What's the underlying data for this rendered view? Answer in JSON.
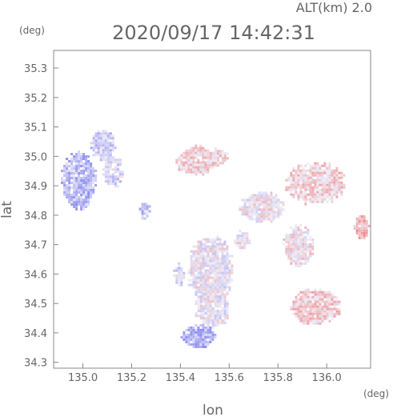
{
  "chart_data": {
    "type": "heatmap",
    "title": "2020/09/17 14:42:31",
    "subtitle": "ALT(km) 2.0",
    "xlabel": "lon",
    "ylabel": "lat",
    "x_unit": "(deg)",
    "y_unit": "(deg)",
    "xlim": [
      134.88,
      136.18
    ],
    "ylim": [
      34.28,
      35.36
    ],
    "xticks": [
      "135.0",
      "135.2",
      "135.4",
      "135.6",
      "135.8",
      "136.0"
    ],
    "yticks": [
      "34.3",
      "34.4",
      "34.5",
      "34.6",
      "34.7",
      "34.8",
      "34.9",
      "35.0",
      "35.1",
      "35.2",
      "35.3"
    ],
    "grid": false,
    "colors": {
      "positive": "#f08a8a",
      "negative": "#8c8cf0",
      "neutral": "#eeeef8"
    },
    "echo_regions": [
      {
        "lon": 134.98,
        "lat": 34.92,
        "rlon": 0.07,
        "rlat": 0.1,
        "tone": -0.5
      },
      {
        "lon": 135.08,
        "lat": 35.04,
        "rlon": 0.05,
        "rlat": 0.05,
        "tone": -0.3
      },
      {
        "lon": 135.12,
        "lat": 34.95,
        "rlon": 0.04,
        "rlat": 0.05,
        "tone": -0.2
      },
      {
        "lon": 135.25,
        "lat": 34.82,
        "rlon": 0.02,
        "rlat": 0.03,
        "tone": -0.4
      },
      {
        "lon": 135.46,
        "lat": 34.99,
        "rlon": 0.08,
        "rlat": 0.05,
        "tone": 0.3
      },
      {
        "lon": 135.55,
        "lat": 35.0,
        "rlon": 0.04,
        "rlat": 0.03,
        "tone": 0.25
      },
      {
        "lon": 135.95,
        "lat": 34.91,
        "rlon": 0.12,
        "rlat": 0.07,
        "tone": 0.3
      },
      {
        "lon": 135.73,
        "lat": 34.83,
        "rlon": 0.09,
        "rlat": 0.05,
        "tone": 0.1
      },
      {
        "lon": 135.88,
        "lat": 34.7,
        "rlon": 0.06,
        "rlat": 0.07,
        "tone": 0.15
      },
      {
        "lon": 136.14,
        "lat": 34.76,
        "rlon": 0.03,
        "rlat": 0.04,
        "tone": 0.6
      },
      {
        "lon": 135.52,
        "lat": 34.62,
        "rlon": 0.09,
        "rlat": 0.11,
        "tone": 0.0
      },
      {
        "lon": 135.53,
        "lat": 34.49,
        "rlon": 0.07,
        "rlat": 0.07,
        "tone": 0.0
      },
      {
        "lon": 135.47,
        "lat": 34.39,
        "rlon": 0.07,
        "rlat": 0.04,
        "tone": -0.6
      },
      {
        "lon": 135.95,
        "lat": 34.49,
        "rlon": 0.1,
        "rlat": 0.06,
        "tone": 0.35
      },
      {
        "lon": 135.39,
        "lat": 34.6,
        "rlon": 0.02,
        "rlat": 0.04,
        "tone": -0.2
      },
      {
        "lon": 135.65,
        "lat": 34.72,
        "rlon": 0.03,
        "rlat": 0.03,
        "tone": 0.1
      }
    ]
  }
}
